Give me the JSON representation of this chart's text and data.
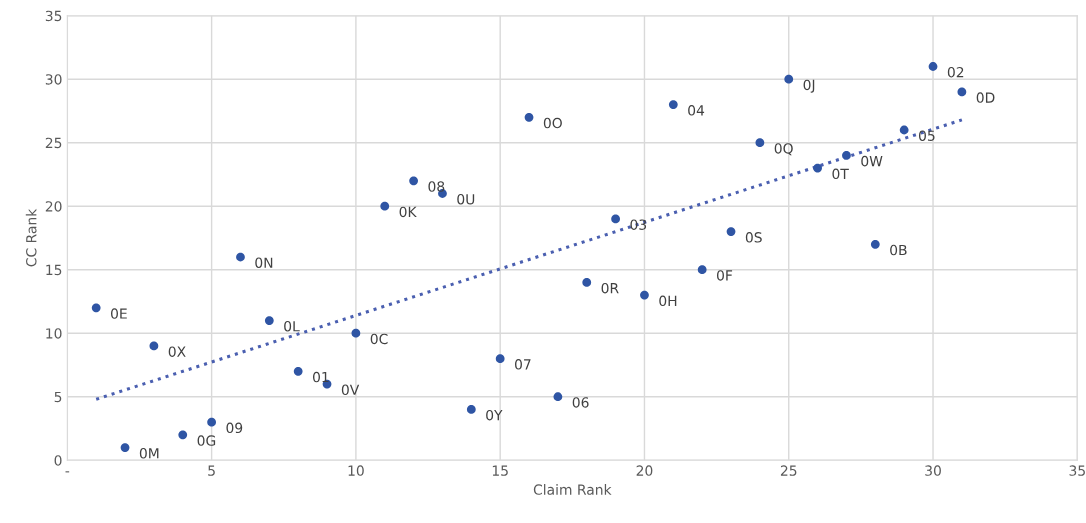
{
  "chart_data": {
    "type": "scatter",
    "xlabel": "Claim Rank",
    "ylabel": "CC Rank",
    "xlim": [
      0,
      35
    ],
    "ylim": [
      0,
      35
    ],
    "xticks": [
      {
        "value": 0,
        "label": "-"
      },
      5,
      10,
      15,
      20,
      25,
      30,
      35
    ],
    "yticks": [
      0,
      5,
      10,
      15,
      20,
      25,
      30,
      35
    ],
    "grid": true,
    "marker": "circle",
    "series": [
      {
        "color": "#2f55a4",
        "x": [
          1,
          2,
          3,
          4,
          5,
          6,
          7,
          8,
          9,
          10,
          11,
          12,
          13,
          14,
          15,
          16,
          17,
          18,
          19,
          20,
          21,
          22,
          23,
          24,
          25,
          26,
          27,
          28,
          29,
          30,
          31
        ],
        "values": [
          12,
          1,
          9,
          2,
          3,
          16,
          11,
          7,
          6,
          10,
          20,
          22,
          21,
          4,
          8,
          27,
          5,
          14,
          19,
          13,
          28,
          15,
          18,
          25,
          30,
          23,
          24,
          17,
          26,
          31,
          29
        ]
      },
      {
        "type": "line",
        "color": "#4a5fb0",
        "line_style": "dotted",
        "marker": "none",
        "x": [
          1,
          31
        ],
        "values": [
          4.8,
          26.8
        ]
      }
    ],
    "annotations": [
      {
        "text": "0E",
        "x": 1,
        "y": 12
      },
      {
        "text": "0M",
        "x": 2,
        "y": 1
      },
      {
        "text": "0X",
        "x": 3,
        "y": 9
      },
      {
        "text": "0G",
        "x": 4,
        "y": 2
      },
      {
        "text": "09",
        "x": 5,
        "y": 3
      },
      {
        "text": "0N",
        "x": 6,
        "y": 16
      },
      {
        "text": "0L",
        "x": 7,
        "y": 11
      },
      {
        "text": "01",
        "x": 8,
        "y": 7
      },
      {
        "text": "0V",
        "x": 9,
        "y": 6
      },
      {
        "text": "0C",
        "x": 10,
        "y": 10
      },
      {
        "text": "0K",
        "x": 11,
        "y": 20
      },
      {
        "text": "08",
        "x": 12,
        "y": 22
      },
      {
        "text": "0U",
        "x": 13,
        "y": 21
      },
      {
        "text": "0Y",
        "x": 14,
        "y": 4
      },
      {
        "text": "07",
        "x": 15,
        "y": 8
      },
      {
        "text": "0O",
        "x": 16,
        "y": 27
      },
      {
        "text": "06",
        "x": 17,
        "y": 5
      },
      {
        "text": "0R",
        "x": 18,
        "y": 14
      },
      {
        "text": "03",
        "x": 19,
        "y": 19
      },
      {
        "text": "0H",
        "x": 20,
        "y": 13
      },
      {
        "text": "04",
        "x": 21,
        "y": 28
      },
      {
        "text": "0F",
        "x": 22,
        "y": 15
      },
      {
        "text": "0S",
        "x": 23,
        "y": 18
      },
      {
        "text": "0Q",
        "x": 24,
        "y": 25
      },
      {
        "text": "0J",
        "x": 25,
        "y": 30
      },
      {
        "text": "0T",
        "x": 26,
        "y": 23
      },
      {
        "text": "0W",
        "x": 27,
        "y": 24
      },
      {
        "text": "0B",
        "x": 28,
        "y": 17
      },
      {
        "text": "05",
        "x": 29,
        "y": 26
      },
      {
        "text": "02",
        "x": 30,
        "y": 31
      },
      {
        "text": "0D",
        "x": 31,
        "y": 29
      }
    ]
  }
}
